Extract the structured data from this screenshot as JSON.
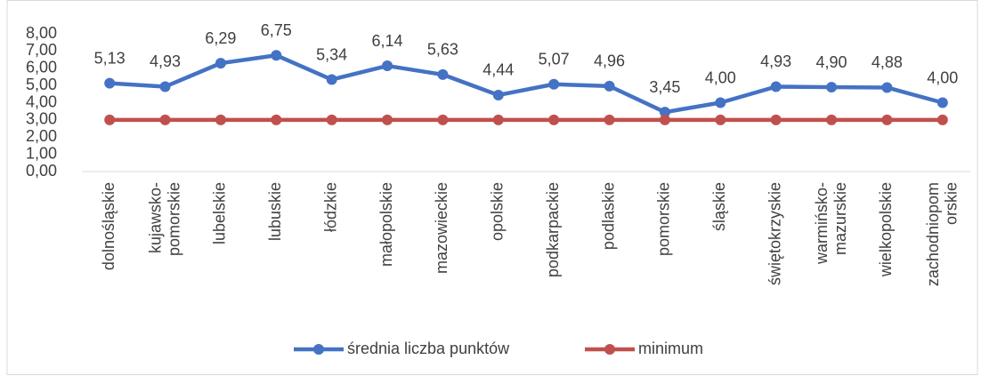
{
  "chart_data": {
    "type": "line",
    "categories": [
      "dolnośląskie",
      "kujawsko-pomorskie",
      "lubelskie",
      "lubuskie",
      "łódzkie",
      "małopolskie",
      "mazowieckie",
      "opolskie",
      "podkarpackie",
      "podlaskie",
      "pomorskie",
      "śląskie",
      "świętokrzyskie",
      "warmińsko-mazurskie",
      "wielkopolskie",
      "zachodniopomorskie"
    ],
    "series": [
      {
        "name": "średnia liczba punktów",
        "color": "#4472c4",
        "values": [
          5.13,
          4.93,
          6.29,
          6.75,
          5.34,
          6.14,
          5.63,
          4.44,
          5.07,
          4.96,
          3.45,
          4.0,
          4.93,
          4.9,
          4.88,
          4.0
        ],
        "value_labels": [
          "5,13",
          "4,93",
          "6,29",
          "6,75",
          "5,34",
          "6,14",
          "5,63",
          "4,44",
          "5,07",
          "4,96",
          "3,45",
          "4,00",
          "4,93",
          "4,90",
          "4,88",
          "4,00"
        ]
      },
      {
        "name": "minimum",
        "color": "#c0504d",
        "values": [
          3,
          3,
          3,
          3,
          3,
          3,
          3,
          3,
          3,
          3,
          3,
          3,
          3,
          3,
          3,
          3
        ]
      }
    ],
    "ylim": [
      0,
      8
    ],
    "yticks": [
      {
        "value": 0,
        "label": "0,00"
      },
      {
        "value": 1,
        "label": "1,00"
      },
      {
        "value": 2,
        "label": "2,00"
      },
      {
        "value": 3,
        "label": "3,00"
      },
      {
        "value": 4,
        "label": "4,00"
      },
      {
        "value": 5,
        "label": "5,00"
      },
      {
        "value": 6,
        "label": "6,00"
      },
      {
        "value": 7,
        "label": "7,00"
      },
      {
        "value": 8,
        "label": "8,00"
      }
    ],
    "grid": false,
    "legend": "bottom"
  }
}
